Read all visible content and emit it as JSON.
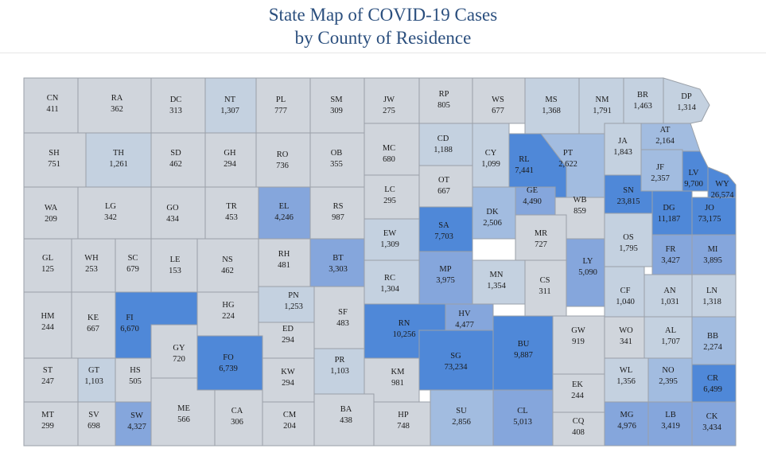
{
  "header": {
    "title_line1": "State Map of COVID-19 Cases",
    "title_line2": "by County of Residence"
  },
  "colors": {
    "very_low": "#d0d5dc",
    "low": "#c4d1e0",
    "medium": "#a2bce0",
    "high": "#85a6dc",
    "very_high": "#4f88d8",
    "border": "#9aa0a8"
  },
  "counties": [
    {
      "abbr": "CN",
      "cases": "411",
      "level": "very_low"
    },
    {
      "abbr": "RA",
      "cases": "362",
      "level": "very_low"
    },
    {
      "abbr": "DC",
      "cases": "313",
      "level": "very_low"
    },
    {
      "abbr": "NT",
      "cases": "1,307",
      "level": "low"
    },
    {
      "abbr": "PL",
      "cases": "777",
      "level": "very_low"
    },
    {
      "abbr": "SM",
      "cases": "309",
      "level": "very_low"
    },
    {
      "abbr": "JW",
      "cases": "275",
      "level": "very_low"
    },
    {
      "abbr": "RP",
      "cases": "805",
      "level": "very_low"
    },
    {
      "abbr": "WS",
      "cases": "677",
      "level": "very_low"
    },
    {
      "abbr": "MS",
      "cases": "1,368",
      "level": "low"
    },
    {
      "abbr": "NM",
      "cases": "1,791",
      "level": "low"
    },
    {
      "abbr": "BR",
      "cases": "1,463",
      "level": "low"
    },
    {
      "abbr": "DP",
      "cases": "1,314",
      "level": "low"
    },
    {
      "abbr": "SH",
      "cases": "751",
      "level": "very_low"
    },
    {
      "abbr": "TH",
      "cases": "1,261",
      "level": "low"
    },
    {
      "abbr": "SD",
      "cases": "462",
      "level": "very_low"
    },
    {
      "abbr": "GH",
      "cases": "294",
      "level": "very_low"
    },
    {
      "abbr": "RO",
      "cases": "736",
      "level": "very_low"
    },
    {
      "abbr": "OB",
      "cases": "355",
      "level": "very_low"
    },
    {
      "abbr": "MC",
      "cases": "680",
      "level": "very_low"
    },
    {
      "abbr": "CD",
      "cases": "1,188",
      "level": "low"
    },
    {
      "abbr": "CY",
      "cases": "1,099",
      "level": "low"
    },
    {
      "abbr": "RL",
      "cases": "7,441",
      "level": "very_high"
    },
    {
      "abbr": "PT",
      "cases": "2,622",
      "level": "medium"
    },
    {
      "abbr": "JA",
      "cases": "1,843",
      "level": "low"
    },
    {
      "abbr": "AT",
      "cases": "2,164",
      "level": "medium"
    },
    {
      "abbr": "WA",
      "cases": "209",
      "level": "very_low"
    },
    {
      "abbr": "LG",
      "cases": "342",
      "level": "very_low"
    },
    {
      "abbr": "GO",
      "cases": "434",
      "level": "very_low"
    },
    {
      "abbr": "TR",
      "cases": "453",
      "level": "very_low"
    },
    {
      "abbr": "EL",
      "cases": "4,246",
      "level": "high"
    },
    {
      "abbr": "RS",
      "cases": "987",
      "level": "very_low"
    },
    {
      "abbr": "LC",
      "cases": "295",
      "level": "very_low"
    },
    {
      "abbr": "OT",
      "cases": "667",
      "level": "very_low"
    },
    {
      "abbr": "GE",
      "cases": "4,490",
      "level": "high"
    },
    {
      "abbr": "WB",
      "cases": "859",
      "level": "very_low"
    },
    {
      "abbr": "SN",
      "cases": "23,815",
      "level": "very_high"
    },
    {
      "abbr": "JF",
      "cases": "2,357",
      "level": "medium"
    },
    {
      "abbr": "LV",
      "cases": "9,700",
      "level": "very_high"
    },
    {
      "abbr": "WY",
      "cases": "26,574",
      "level": "very_high"
    },
    {
      "abbr": "DG",
      "cases": "11,187",
      "level": "very_high"
    },
    {
      "abbr": "JO",
      "cases": "73,175",
      "level": "very_high"
    },
    {
      "abbr": "SA",
      "cases": "7,703",
      "level": "very_high"
    },
    {
      "abbr": "DK",
      "cases": "2,506",
      "level": "medium"
    },
    {
      "abbr": "EW",
      "cases": "1,309",
      "level": "low"
    },
    {
      "abbr": "MR",
      "cases": "727",
      "level": "very_low"
    },
    {
      "abbr": "GL",
      "cases": "125",
      "level": "very_low"
    },
    {
      "abbr": "WH",
      "cases": "253",
      "level": "very_low"
    },
    {
      "abbr": "SC",
      "cases": "679",
      "level": "very_low"
    },
    {
      "abbr": "LE",
      "cases": "153",
      "level": "very_low"
    },
    {
      "abbr": "NS",
      "cases": "462",
      "level": "very_low"
    },
    {
      "abbr": "RH",
      "cases": "481",
      "level": "very_low"
    },
    {
      "abbr": "BT",
      "cases": "3,303",
      "level": "high"
    },
    {
      "abbr": "OS",
      "cases": "1,795",
      "level": "low"
    },
    {
      "abbr": "FR",
      "cases": "3,427",
      "level": "high"
    },
    {
      "abbr": "MI",
      "cases": "3,895",
      "level": "high"
    },
    {
      "abbr": "LY",
      "cases": "5,090",
      "level": "high"
    },
    {
      "abbr": "RC",
      "cases": "1,304",
      "level": "low"
    },
    {
      "abbr": "MP",
      "cases": "3,975",
      "level": "high"
    },
    {
      "abbr": "MN",
      "cases": "1,354",
      "level": "low"
    },
    {
      "abbr": "CS",
      "cases": "311",
      "level": "very_low"
    },
    {
      "abbr": "HM",
      "cases": "244",
      "level": "very_low"
    },
    {
      "abbr": "KE",
      "cases": "667",
      "level": "very_low"
    },
    {
      "abbr": "FI",
      "cases": "6,670",
      "level": "very_high"
    },
    {
      "abbr": "HG",
      "cases": "224",
      "level": "very_low"
    },
    {
      "abbr": "PN",
      "cases": "1,253",
      "level": "low"
    },
    {
      "abbr": "ED",
      "cases": "294",
      "level": "very_low"
    },
    {
      "abbr": "SF",
      "cases": "483",
      "level": "very_low"
    },
    {
      "abbr": "RN",
      "cases": "10,256",
      "level": "very_high"
    },
    {
      "abbr": "HV",
      "cases": "4,477",
      "level": "high"
    },
    {
      "abbr": "CF",
      "cases": "1,040",
      "level": "low"
    },
    {
      "abbr": "AN",
      "cases": "1,031",
      "level": "low"
    },
    {
      "abbr": "LN",
      "cases": "1,318",
      "level": "low"
    },
    {
      "abbr": "GY",
      "cases": "720",
      "level": "very_low"
    },
    {
      "abbr": "FO",
      "cases": "6,739",
      "level": "very_high"
    },
    {
      "abbr": "GW",
      "cases": "919",
      "level": "very_low"
    },
    {
      "abbr": "WO",
      "cases": "341",
      "level": "very_low"
    },
    {
      "abbr": "AL",
      "cases": "1,707",
      "level": "low"
    },
    {
      "abbr": "BB",
      "cases": "2,274",
      "level": "medium"
    },
    {
      "abbr": "SG",
      "cases": "73,234",
      "level": "very_high"
    },
    {
      "abbr": "BU",
      "cases": "9,887",
      "level": "very_high"
    },
    {
      "abbr": "ST",
      "cases": "247",
      "level": "very_low"
    },
    {
      "abbr": "GT",
      "cases": "1,103",
      "level": "low"
    },
    {
      "abbr": "HS",
      "cases": "505",
      "level": "very_low"
    },
    {
      "abbr": "KW",
      "cases": "294",
      "level": "very_low"
    },
    {
      "abbr": "PR",
      "cases": "1,103",
      "level": "low"
    },
    {
      "abbr": "KM",
      "cases": "981",
      "level": "very_low"
    },
    {
      "abbr": "WL",
      "cases": "1,356",
      "level": "low"
    },
    {
      "abbr": "NO",
      "cases": "2,395",
      "level": "medium"
    },
    {
      "abbr": "CR",
      "cases": "6,499",
      "level": "very_high"
    },
    {
      "abbr": "EK",
      "cases": "244",
      "level": "very_low"
    },
    {
      "abbr": "MT",
      "cases": "299",
      "level": "very_low"
    },
    {
      "abbr": "SV",
      "cases": "698",
      "level": "very_low"
    },
    {
      "abbr": "SW",
      "cases": "4,327",
      "level": "high"
    },
    {
      "abbr": "ME",
      "cases": "566",
      "level": "very_low"
    },
    {
      "abbr": "CA",
      "cases": "306",
      "level": "very_low"
    },
    {
      "abbr": "CM",
      "cases": "204",
      "level": "very_low"
    },
    {
      "abbr": "BA",
      "cases": "438",
      "level": "very_low"
    },
    {
      "abbr": "HP",
      "cases": "748",
      "level": "very_low"
    },
    {
      "abbr": "SU",
      "cases": "2,856",
      "level": "medium"
    },
    {
      "abbr": "CL",
      "cases": "5,013",
      "level": "high"
    },
    {
      "abbr": "CQ",
      "cases": "408",
      "level": "very_low"
    },
    {
      "abbr": "MG",
      "cases": "4,976",
      "level": "high"
    },
    {
      "abbr": "LB",
      "cases": "3,419",
      "level": "high"
    },
    {
      "abbr": "CK",
      "cases": "3,434",
      "level": "high"
    }
  ]
}
